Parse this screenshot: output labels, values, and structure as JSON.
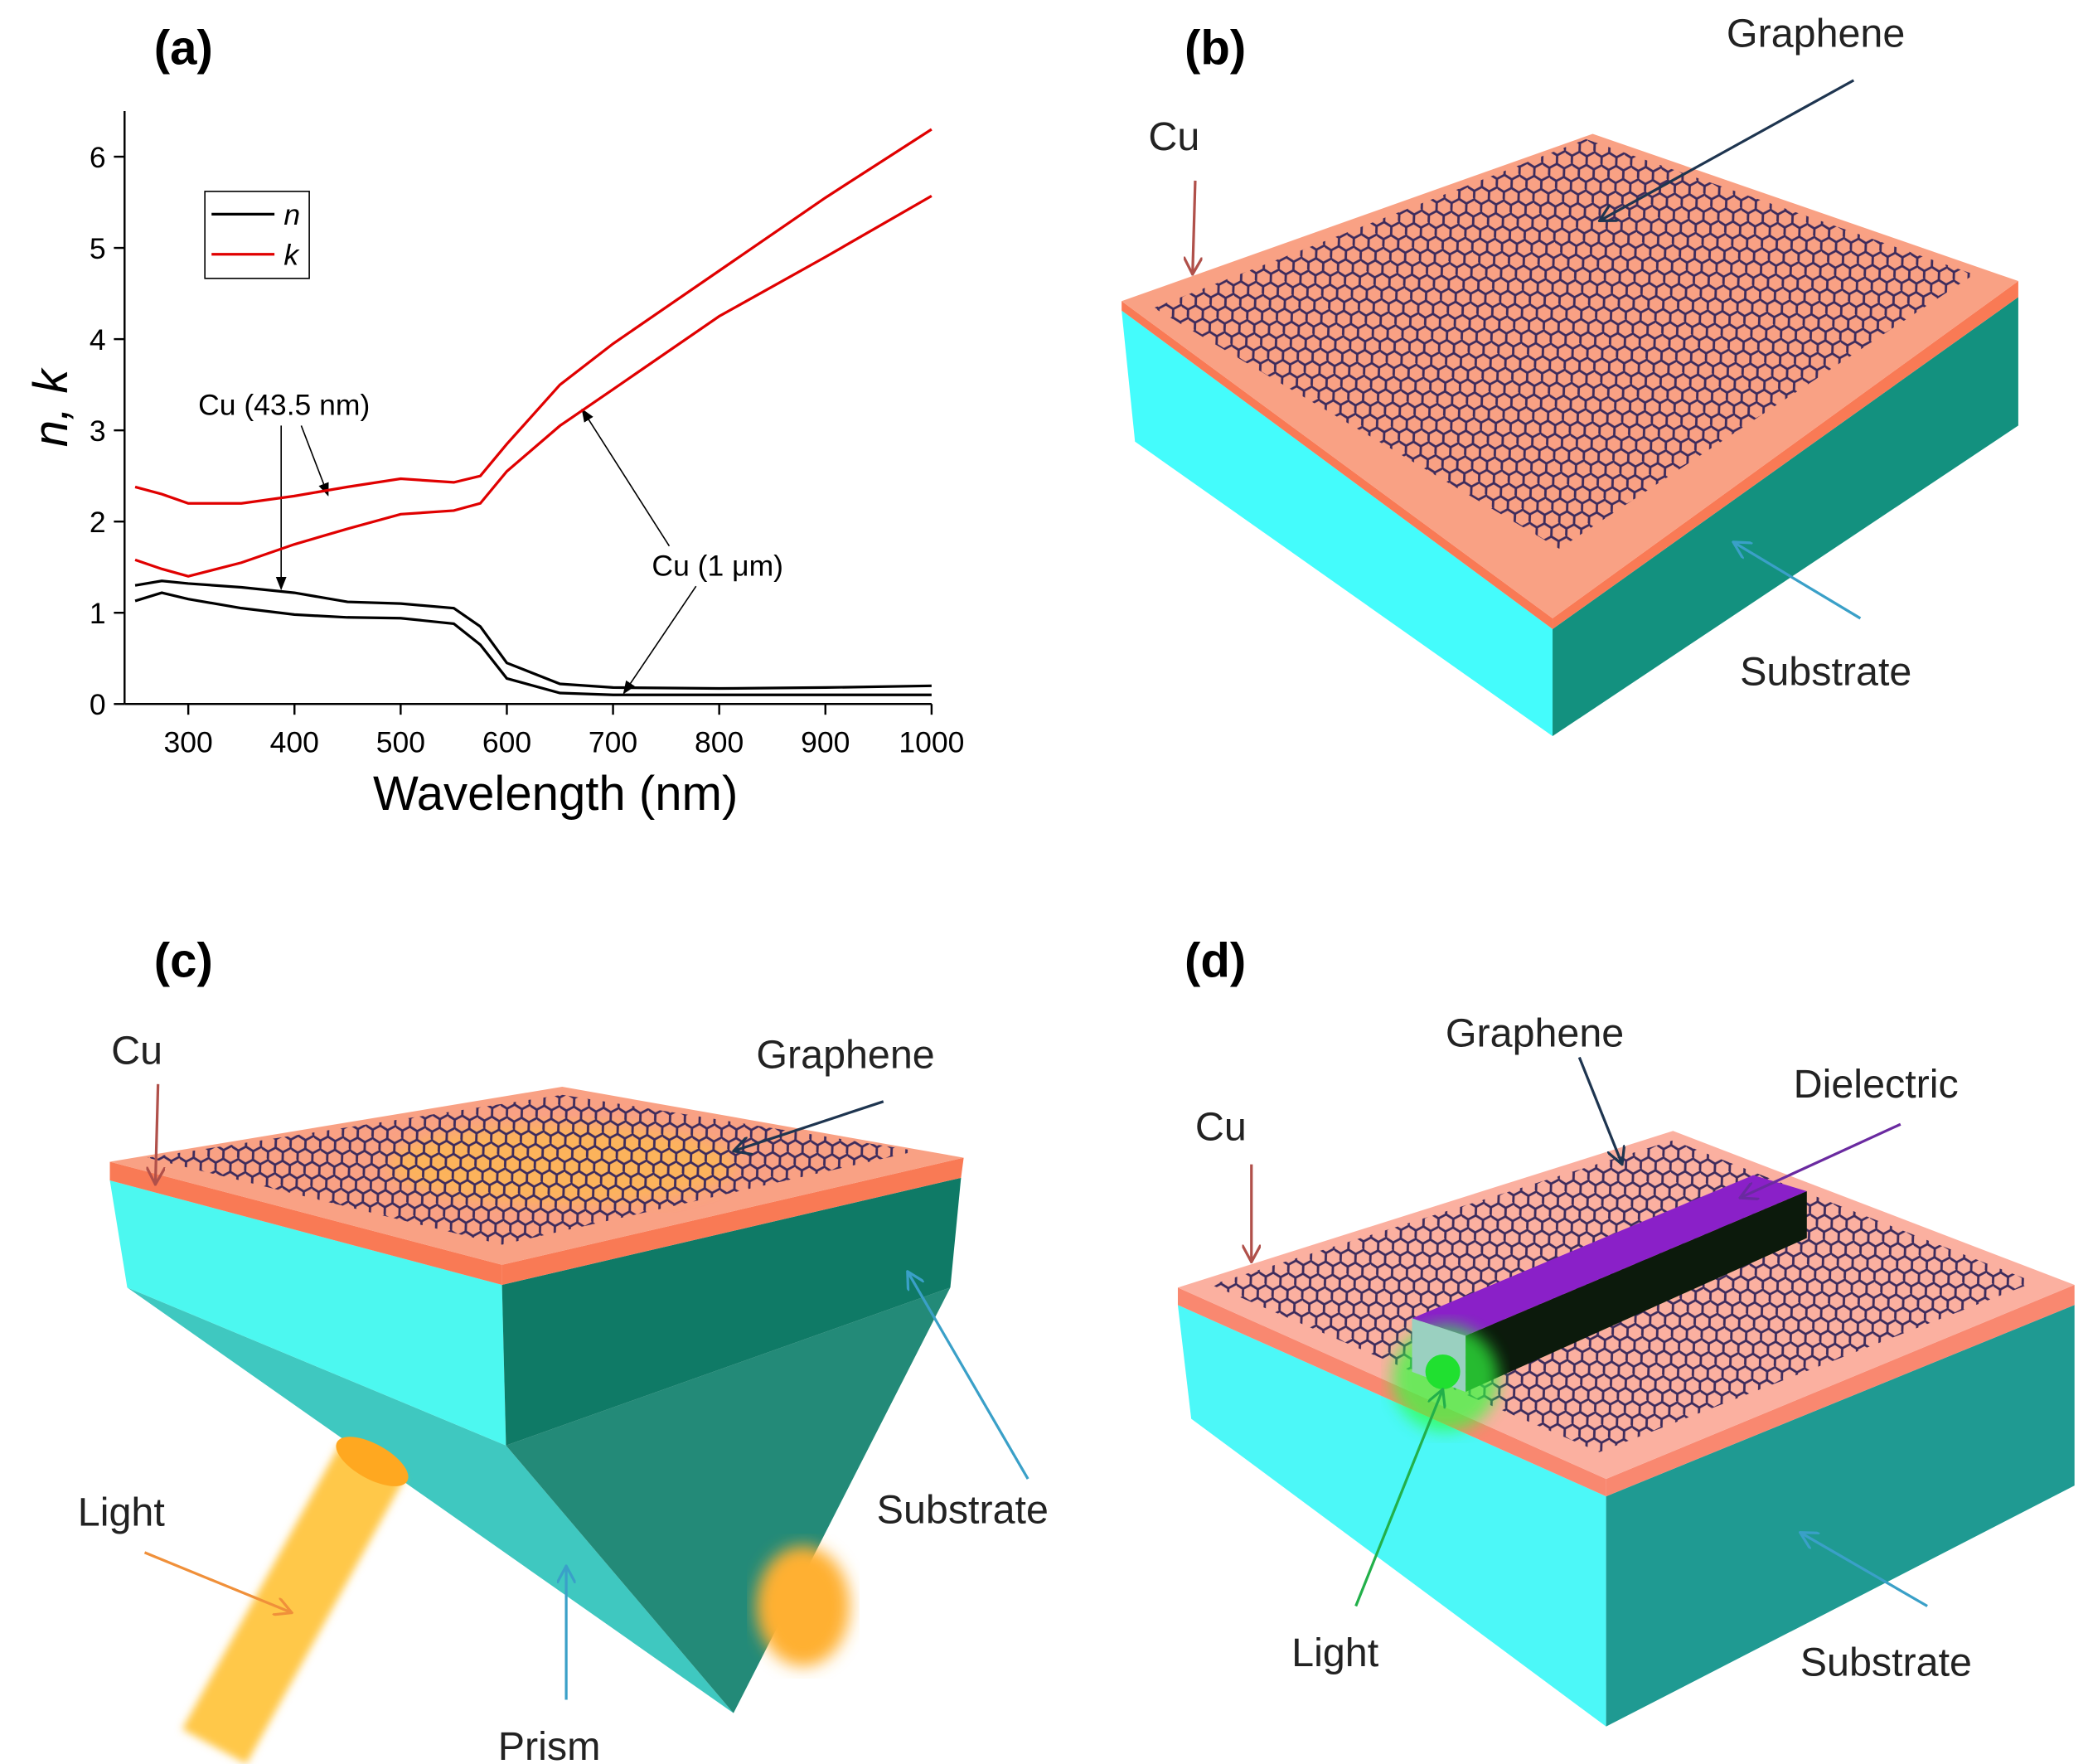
{
  "chart_data": {
    "type": "line",
    "title": "(a)",
    "xlabel": "Wavelength (nm)",
    "ylabel": "n, k",
    "x": [
      250,
      275,
      300,
      350,
      400,
      450,
      500,
      550,
      575,
      600,
      650,
      700,
      800,
      900,
      1000
    ],
    "xlim": [
      240,
      1000
    ],
    "xticks": [
      300,
      400,
      500,
      600,
      700,
      800,
      900,
      1000
    ],
    "ylim": [
      0,
      6.5
    ],
    "yticks": [
      0,
      1,
      2,
      3,
      4,
      5,
      6
    ],
    "series": [
      {
        "name": "n",
        "color": "#000000",
        "values": [
          1.3,
          1.35,
          1.32,
          1.28,
          1.22,
          1.12,
          1.1,
          1.05,
          0.85,
          0.45,
          0.22,
          0.18,
          0.17,
          0.18,
          0.2
        ]
      },
      {
        "name": "k",
        "color": "#e00000",
        "values": [
          2.38,
          2.3,
          2.2,
          2.2,
          2.28,
          2.38,
          2.47,
          2.43,
          2.5,
          2.85,
          3.5,
          3.95,
          4.75,
          5.55,
          6.3
        ]
      },
      {
        "name": "n",
        "color": "#000000",
        "values": [
          1.13,
          1.22,
          1.15,
          1.05,
          0.98,
          0.95,
          0.94,
          0.88,
          0.65,
          0.28,
          0.12,
          0.1,
          0.1,
          0.1,
          0.1
        ]
      },
      {
        "name": "k",
        "color": "#e00000",
        "values": [
          1.58,
          1.48,
          1.4,
          1.55,
          1.75,
          1.92,
          2.08,
          2.12,
          2.2,
          2.55,
          3.05,
          3.45,
          4.25,
          4.9,
          5.57
        ]
      }
    ],
    "annotations": [
      "Cu (43.5 nm)",
      "Cu (1 μm)"
    ],
    "legend": "upper left"
  },
  "panels": [
    {
      "label": "(b)",
      "cu": "Cu",
      "graphene": "Graphene",
      "substrate": "Substrate"
    },
    {
      "label": "(c)",
      "cu": "Cu",
      "graphene": "Graphene",
      "substrate": "Substrate",
      "light": "Light",
      "prism": "Prism"
    },
    {
      "label": "(d)",
      "cu": "Cu",
      "graphene": "Graphene",
      "dielectric": "Dielectric",
      "light": "Light",
      "substrate": "Substrate"
    }
  ]
}
